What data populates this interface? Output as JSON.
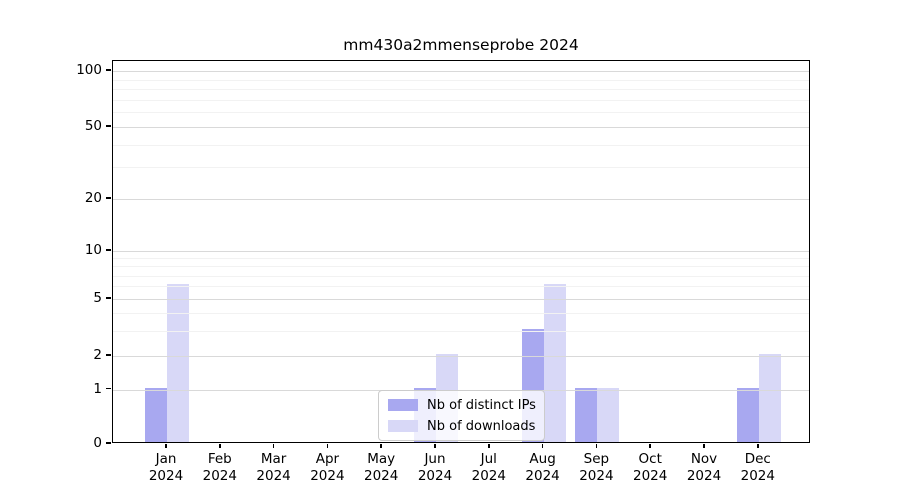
{
  "title": "mm430a2mmenseprobe 2024",
  "legend": {
    "items": [
      {
        "label": "Nb of distinct IPs",
        "color": "#a8a8f0"
      },
      {
        "label": "Nb of downloads",
        "color": "#d8d8f7"
      }
    ]
  },
  "axes": {
    "y_tick_labels": [
      "100",
      "50",
      "20",
      "10",
      "5",
      "2",
      "1",
      "0"
    ],
    "x_tick_labels": [
      "Jan 2024",
      "Feb 2024",
      "Mar 2024",
      "Apr 2024",
      "May 2024",
      "Jun 2024",
      "Jul 2024",
      "Aug 2024",
      "Sep 2024",
      "Oct 2024",
      "Nov 2024",
      "Dec 2024"
    ]
  },
  "chart_data": {
    "type": "bar",
    "title": "mm430a2mmenseprobe 2024",
    "categories": [
      "Jan 2024",
      "Feb 2024",
      "Mar 2024",
      "Apr 2024",
      "May 2024",
      "Jun 2024",
      "Jul 2024",
      "Aug 2024",
      "Sep 2024",
      "Oct 2024",
      "Nov 2024",
      "Dec 2024"
    ],
    "series": [
      {
        "name": "Nb of distinct IPs",
        "color": "#a8a8f0",
        "values": [
          1,
          0,
          0,
          0,
          0,
          1,
          0,
          3,
          1,
          0,
          0,
          1
        ]
      },
      {
        "name": "Nb of downloads",
        "color": "#d8d8f7",
        "values": [
          6,
          0,
          0,
          0,
          0,
          2,
          0,
          6,
          1,
          0,
          0,
          2
        ]
      }
    ],
    "xlabel": "",
    "ylabel": "",
    "yscale": "symlog",
    "yticks": [
      0,
      1,
      2,
      5,
      10,
      20,
      50,
      100
    ],
    "yticks_minor": [
      3,
      4,
      6,
      7,
      8,
      9,
      30,
      40,
      60,
      70,
      80,
      90
    ],
    "ylim": [
      0,
      115
    ],
    "grid": true,
    "grid_above_bars": true,
    "legend_position": "lower center inside",
    "bar_layout": "grouped, ips-bar left of month tick, downloads-bar right of month tick"
  }
}
